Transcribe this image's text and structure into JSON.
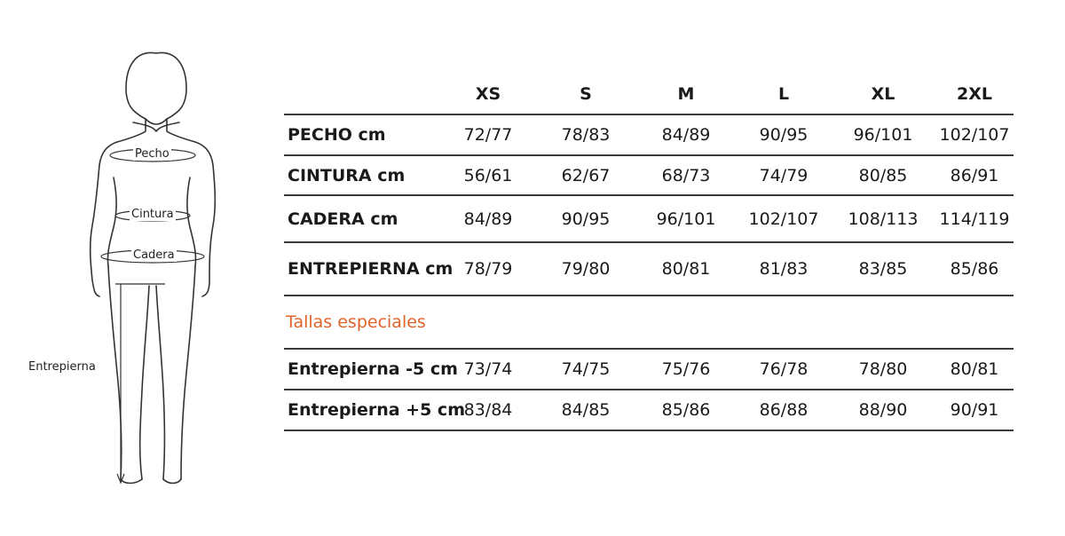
{
  "figure": {
    "labels": {
      "chest": "Pecho",
      "waist": "Cintura",
      "hip": "Cadera",
      "inseam": "Entrepierna"
    }
  },
  "table": {
    "sizes": [
      "XS",
      "S",
      "M",
      "L",
      "XL",
      "2XL"
    ],
    "rows": [
      {
        "label": "PECHO  cm",
        "values": [
          "72/77",
          "78/83",
          "84/89",
          "90/95",
          "96/101",
          "102/107"
        ]
      },
      {
        "label": "CINTURA cm",
        "values": [
          "56/61",
          "62/67",
          "68/73",
          "74/79",
          "80/85",
          "86/91"
        ]
      },
      {
        "label": "CADERA cm",
        "values": [
          "84/89",
          "90/95",
          "96/101",
          "102/107",
          "108/113",
          "114/119"
        ]
      },
      {
        "label": "ENTREPIERNA cm",
        "values": [
          "78/79",
          "79/80",
          "80/81",
          "81/83",
          "83/85",
          "85/86"
        ]
      }
    ],
    "special_title": "Tallas especiales",
    "special_rows": [
      {
        "label": "Entrepierna -5 cm",
        "values": [
          "73/74",
          "74/75",
          "75/76",
          "76/78",
          "78/80",
          "80/81"
        ]
      },
      {
        "label": "Entrepierna +5 cm",
        "values": [
          "83/84",
          "84/85",
          "85/86",
          "86/88",
          "88/90",
          "90/91"
        ]
      }
    ]
  }
}
